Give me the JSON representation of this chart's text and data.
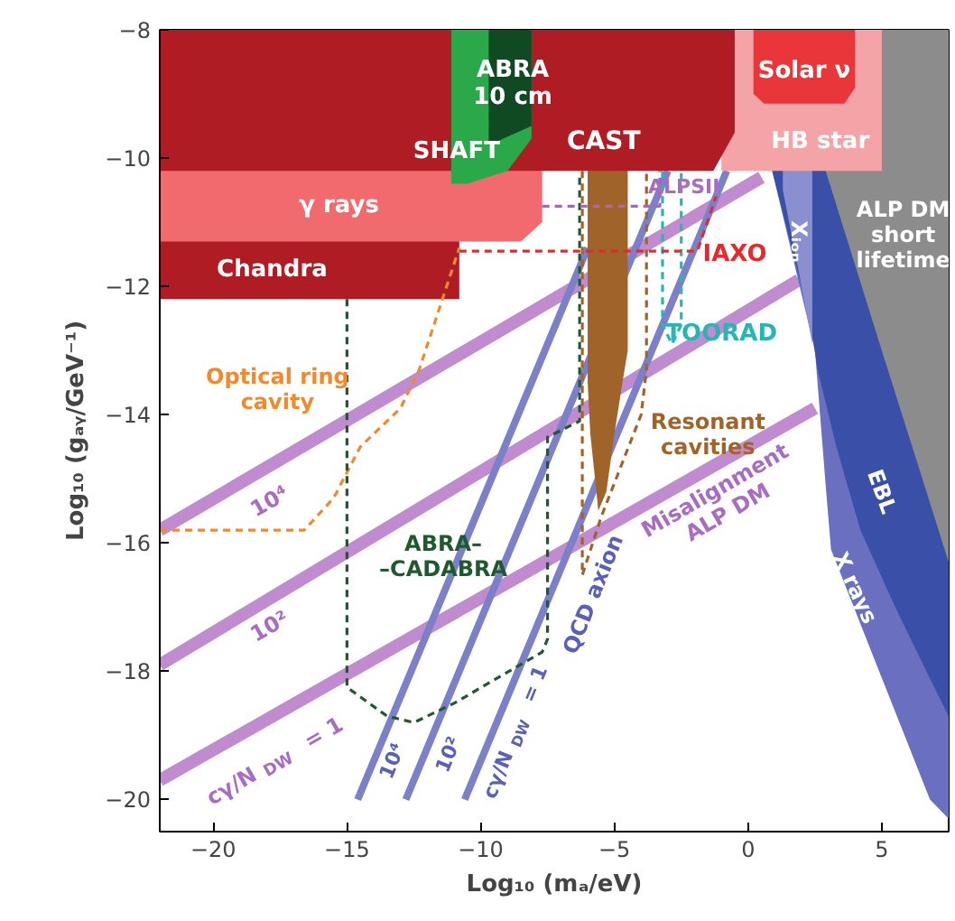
{
  "chart_data": {
    "type": "area",
    "xlabel": "Log₁₀ (mₐ/eV)",
    "ylabel": "Log₁₀ (gₐᵧ/GeV⁻¹)",
    "xlim": [
      -22,
      7.5
    ],
    "ylim": [
      -20.5,
      -8
    ],
    "xticks": [
      -20,
      -15,
      -10,
      -5,
      0,
      5
    ],
    "yticks": [
      -8,
      -10,
      -12,
      -14,
      -16,
      -18,
      -20
    ],
    "grid": false,
    "series": [
      {
        "type": "line",
        "color": "#c08ccf",
        "line_style": "solid",
        "x": [
          -22,
          0.5
        ],
        "values": [
          -15.8,
          -10.3
        ]
      },
      {
        "type": "line",
        "color": "#c08ccf",
        "line_style": "solid",
        "x": [
          -22,
          1.9
        ],
        "values": [
          -17.9,
          -11.9
        ]
      },
      {
        "type": "line",
        "color": "#c08ccf",
        "line_style": "solid",
        "x": [
          -22,
          2.5
        ],
        "values": [
          -19.7,
          -13.9
        ]
      },
      {
        "type": "line",
        "color": "#7c80c8",
        "line_style": "solid",
        "x": [
          -14.6,
          -6.0
        ],
        "values": [
          -20,
          -11.4
        ]
      },
      {
        "type": "line",
        "color": "#7c80c8",
        "line_style": "solid",
        "x": [
          -12.8,
          -3.0
        ],
        "values": [
          -20,
          -10.2
        ]
      },
      {
        "type": "line",
        "color": "#7c80c8",
        "line_style": "solid",
        "x": [
          -10.6,
          -0.8
        ],
        "values": [
          -20,
          -10.2
        ]
      },
      {
        "color": "#6a6fc0",
        "x": [
          0.9,
          2.5,
          2.9,
          3.1,
          4.9,
          6.8,
          7.5
        ],
        "values": [
          -10.2,
          -13.0,
          -15.1,
          -16.1,
          -18.0,
          -20.0,
          -20.3
        ]
      },
      {
        "color": "#3a4fa8",
        "x": [
          0.9,
          2.3,
          2.6,
          3.3,
          4.2,
          5.5,
          6.9,
          7.5
        ],
        "values": [
          -10.2,
          -12.5,
          -13.3,
          -14.5,
          -15.8,
          -17.0,
          -18.2,
          -18.7
        ]
      },
      {
        "color": "#8a8fd0",
        "x": [
          1.3,
          2.0,
          2.4
        ],
        "values": [
          -10.5,
          -12.0,
          -12.9
        ]
      },
      {
        "color": "#8c8c8c",
        "x": [
          2.9,
          5.0,
          7.5
        ],
        "values": [
          -10.2,
          -13.0,
          -16.3
        ]
      },
      {
        "color": "#f4a3a6",
        "x": [
          -1.0,
          5.0
        ],
        "values": [
          -10.2,
          -10.2
        ]
      },
      {
        "color": "#e8363b",
        "x": [
          0.2,
          0.6,
          3.6,
          4.0
        ],
        "values": [
          -9.0,
          -9.15,
          -9.15,
          -8.9
        ]
      },
      {
        "color": "#a0642a",
        "x": [
          -6.0,
          -5.9,
          -5.6,
          -5.3,
          -5.0,
          -4.7,
          -4.5
        ],
        "values": [
          -13.5,
          -14.3,
          -15.5,
          -15.2,
          -14.3,
          -13.5,
          -13.0
        ]
      },
      {
        "color": "#b01c24",
        "x": [
          -22,
          -10.8
        ],
        "values": [
          -12.2,
          -12.2
        ]
      },
      {
        "color": "#f06a6e",
        "x": [
          -22,
          -8.5,
          -7.7
        ],
        "values": [
          -11.3,
          -11.3,
          -11.0
        ]
      },
      {
        "color": "#b01c24",
        "x": [
          -22,
          -1.3,
          -0.5
        ],
        "values": [
          -10.2,
          -10.2,
          -9.6
        ]
      },
      {
        "color": "#2aa84a",
        "x": [
          -11.1,
          -10.5,
          -9.0,
          -8.1
        ],
        "values": [
          -10.4,
          -10.4,
          -10.2,
          -9.7
        ]
      },
      {
        "color": "#0f4a22",
        "x": [
          -9.7,
          -8.1
        ],
        "values": [
          -9.8,
          -9.5
        ]
      },
      {
        "type": "line",
        "color": "#f08a30",
        "line_style": "dashed",
        "x": [
          -22,
          -16.6,
          -15.5,
          -14.5,
          -13,
          -12.3,
          -10.8
        ],
        "values": [
          -15.8,
          -15.8,
          -15.3,
          -14.5,
          -13.9,
          -13.3,
          -11.4
        ]
      },
      {
        "type": "line",
        "color": "#1f5a2e",
        "line_style": "dashed",
        "x": [
          -15,
          -15,
          -13.5,
          -12.5,
          -11,
          -7.7,
          -7.5,
          -7.5,
          -6.3,
          -6.3
        ],
        "values": [
          -12.2,
          -18.25,
          -18.7,
          -18.8,
          -18.5,
          -17.7,
          -17.5,
          -14.35,
          -14.1,
          -10.3
        ]
      },
      {
        "type": "line",
        "color": "#a0642a",
        "line_style": "dashed",
        "x": [
          -6.2,
          -6.2,
          -5.5,
          -4.0,
          -3.8,
          -3.8
        ],
        "values": [
          -10.2,
          -16.5,
          -15.6,
          -14.0,
          -13.3,
          -10.2
        ]
      },
      {
        "type": "line",
        "color": "#2ab5b5",
        "line_style": "dashed",
        "x": [
          -3.2,
          -3.2,
          -2.85,
          -2.5,
          -2.5
        ],
        "values": [
          -10.2,
          -12.6,
          -12.9,
          -12.6,
          -10.2
        ]
      },
      {
        "type": "line",
        "color": "#e8282a",
        "line_style": "dashed",
        "x": [
          -10.8,
          -1.9,
          -1.2
        ],
        "values": [
          -11.45,
          -11.45,
          -10.6
        ]
      },
      {
        "type": "line",
        "color": "#b060c0",
        "line_style": "dashed",
        "x": [
          -7.7,
          -3.3,
          -3.3
        ],
        "values": [
          -10.75,
          -10.75,
          -10.2
        ]
      }
    ],
    "annotations": [
      "ABRA\n10 cm",
      "SHAFT",
      "CAST",
      "Solar ν",
      "HB star",
      "ALP DM\nshort\nlifetime",
      "γ rays",
      "Chandra",
      "ALPSII",
      "IAXO",
      "Xᵢₒₙ",
      "TOORAD",
      "Optical ring\ncavity",
      "Resonant\ncavities",
      "10⁴",
      "10²",
      "cγ/N$_{DW}$ = 1",
      "Misalignment\nALP DM",
      "ABRA–\n–CADABRA",
      "10⁴",
      "10²",
      "cγ/N$_{DW}$ = 1",
      "QCD axion",
      "EBL",
      "X rays"
    ]
  }
}
